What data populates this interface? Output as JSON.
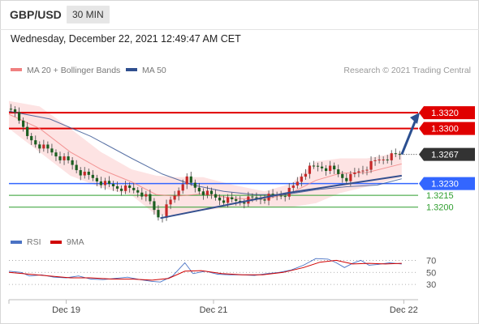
{
  "header": {
    "symbol": "GBP/USD",
    "interval": "30 MIN",
    "datetime": "Wednesday, December 22, 2021 12:49:47 AM CET"
  },
  "legend": {
    "ma20_bb": "MA 20 + Bollinger Bands",
    "ma50": "MA 50",
    "copyright": "Research © 2021 Trading Central",
    "ma20_color": "#f08080",
    "ma50_color": "#2f4f8f"
  },
  "rsi_legend": {
    "rsi": "RSI",
    "ma9": "9MA",
    "rsi_color": "#4a72c4",
    "ma9_color": "#d00000"
  },
  "chart_data": {
    "type": "candlestick",
    "y_range": [
      1.3175,
      1.335
    ],
    "current_price": "1.3267",
    "levels": [
      {
        "label": "1.3320",
        "value": 1.332,
        "style": "resistance",
        "color": "#e00000"
      },
      {
        "label": "1.3300",
        "value": 1.33,
        "style": "resistance",
        "color": "#e00000"
      },
      {
        "label": "1.3230",
        "value": 1.323,
        "style": "pivot",
        "color": "#3366ff"
      },
      {
        "label": "1.3215",
        "value": 1.3215,
        "style": "support",
        "color": "#2e9e2e"
      },
      {
        "label": "1.3200",
        "value": 1.32,
        "style": "support",
        "color": "#2e9e2e"
      }
    ],
    "x_tick_labels": [
      "Dec 19",
      "Dec 21",
      "Dec 22"
    ],
    "price_path": [
      [
        0,
        1.3325
      ],
      [
        4,
        1.3322
      ],
      [
        8,
        1.329
      ],
      [
        14,
        1.328
      ],
      [
        22,
        1.3268
      ],
      [
        30,
        1.3256
      ],
      [
        36,
        1.3242
      ],
      [
        42,
        1.3236
      ],
      [
        48,
        1.3228
      ],
      [
        54,
        1.3225
      ],
      [
        60,
        1.3222
      ],
      [
        64,
        1.322
      ],
      [
        68,
        1.321
      ],
      [
        72,
        1.3192
      ],
      [
        74,
        1.3186
      ],
      [
        78,
        1.3204
      ],
      [
        82,
        1.3218
      ],
      [
        86,
        1.3238
      ],
      [
        90,
        1.3226
      ],
      [
        96,
        1.3218
      ],
      [
        102,
        1.3211
      ],
      [
        108,
        1.3208
      ],
      [
        114,
        1.3208
      ],
      [
        120,
        1.3211
      ],
      [
        124,
        1.3212
      ],
      [
        130,
        1.3214
      ],
      [
        136,
        1.3218
      ],
      [
        140,
        1.3228
      ],
      [
        144,
        1.3245
      ],
      [
        148,
        1.325
      ],
      [
        152,
        1.3252
      ],
      [
        158,
        1.3248
      ],
      [
        162,
        1.324
      ],
      [
        166,
        1.3236
      ],
      [
        170,
        1.3244
      ],
      [
        176,
        1.3253
      ],
      [
        182,
        1.3262
      ],
      [
        188,
        1.3265
      ],
      [
        192,
        1.3267
      ]
    ],
    "ma20": [
      [
        0,
        1.3318
      ],
      [
        15,
        1.33
      ],
      [
        30,
        1.327
      ],
      [
        45,
        1.3248
      ],
      [
        60,
        1.3232
      ],
      [
        72,
        1.3216
      ],
      [
        82,
        1.3214
      ],
      [
        95,
        1.3217
      ],
      [
        110,
        1.3211
      ],
      [
        125,
        1.321
      ],
      [
        138,
        1.3218
      ],
      [
        150,
        1.3234
      ],
      [
        162,
        1.3243
      ],
      [
        175,
        1.3244
      ],
      [
        192,
        1.3255
      ]
    ],
    "bb_upper": [
      [
        0,
        1.3335
      ],
      [
        15,
        1.3328
      ],
      [
        30,
        1.33
      ],
      [
        45,
        1.327
      ],
      [
        60,
        1.3248
      ],
      [
        72,
        1.324
      ],
      [
        82,
        1.3238
      ],
      [
        95,
        1.3238
      ],
      [
        110,
        1.3228
      ],
      [
        125,
        1.322
      ],
      [
        138,
        1.323
      ],
      [
        150,
        1.3258
      ],
      [
        162,
        1.3262
      ],
      [
        175,
        1.3262
      ],
      [
        192,
        1.327
      ]
    ],
    "bb_lower": [
      [
        0,
        1.33
      ],
      [
        15,
        1.327
      ],
      [
        30,
        1.324
      ],
      [
        45,
        1.3225
      ],
      [
        60,
        1.3215
      ],
      [
        72,
        1.319
      ],
      [
        82,
        1.319
      ],
      [
        95,
        1.3196
      ],
      [
        110,
        1.32
      ],
      [
        125,
        1.32
      ],
      [
        138,
        1.32
      ],
      [
        150,
        1.3205
      ],
      [
        162,
        1.3218
      ],
      [
        175,
        1.3226
      ],
      [
        192,
        1.3238
      ]
    ],
    "ma50": [
      [
        0,
        1.3322
      ],
      [
        20,
        1.3312
      ],
      [
        40,
        1.329
      ],
      [
        60,
        1.3262
      ],
      [
        75,
        1.3242
      ],
      [
        90,
        1.3228
      ],
      [
        105,
        1.322
      ],
      [
        120,
        1.3216
      ],
      [
        135,
        1.3216
      ],
      [
        150,
        1.3222
      ],
      [
        165,
        1.3226
      ],
      [
        180,
        1.3228
      ],
      [
        192,
        1.3236
      ]
    ],
    "trendlines": [
      {
        "from": [
          74,
          1.3186
        ],
        "to": [
          136,
          1.3218
        ]
      },
      {
        "from": [
          136,
          1.3218
        ],
        "to": [
          192,
          1.324
        ]
      }
    ],
    "projection": {
      "from": [
        192,
        1.3267
      ],
      "to": [
        200,
        1.3316
      ]
    },
    "rsi": {
      "y_range": [
        10,
        80
      ],
      "levels": [
        {
          "label": "70",
          "value": 70
        },
        {
          "label": "50",
          "value": 50
        },
        {
          "label": "30",
          "value": 30
        }
      ],
      "rsi_path": [
        [
          0,
          52
        ],
        [
          6,
          50
        ],
        [
          10,
          44
        ],
        [
          16,
          46
        ],
        [
          22,
          42
        ],
        [
          28,
          41
        ],
        [
          34,
          44
        ],
        [
          40,
          39
        ],
        [
          46,
          38
        ],
        [
          52,
          40
        ],
        [
          58,
          42
        ],
        [
          64,
          38
        ],
        [
          70,
          35
        ],
        [
          74,
          34
        ],
        [
          80,
          44
        ],
        [
          86,
          66
        ],
        [
          90,
          48
        ],
        [
          96,
          52
        ],
        [
          102,
          47
        ],
        [
          108,
          46
        ],
        [
          114,
          46
        ],
        [
          120,
          45
        ],
        [
          126,
          48
        ],
        [
          132,
          50
        ],
        [
          138,
          54
        ],
        [
          144,
          62
        ],
        [
          150,
          73
        ],
        [
          156,
          72
        ],
        [
          160,
          66
        ],
        [
          164,
          58
        ],
        [
          168,
          65
        ],
        [
          172,
          70
        ],
        [
          176,
          62
        ],
        [
          180,
          63
        ],
        [
          186,
          66
        ],
        [
          192,
          64
        ]
      ],
      "ma9_path": [
        [
          0,
          50
        ],
        [
          10,
          47
        ],
        [
          20,
          44
        ],
        [
          30,
          41
        ],
        [
          40,
          41
        ],
        [
          50,
          39
        ],
        [
          60,
          39
        ],
        [
          70,
          37
        ],
        [
          78,
          40
        ],
        [
          86,
          52
        ],
        [
          94,
          53
        ],
        [
          104,
          48
        ],
        [
          114,
          46
        ],
        [
          124,
          46
        ],
        [
          134,
          50
        ],
        [
          144,
          58
        ],
        [
          152,
          67
        ],
        [
          160,
          70
        ],
        [
          168,
          64
        ],
        [
          176,
          65
        ],
        [
          184,
          64
        ],
        [
          192,
          65
        ]
      ]
    }
  }
}
